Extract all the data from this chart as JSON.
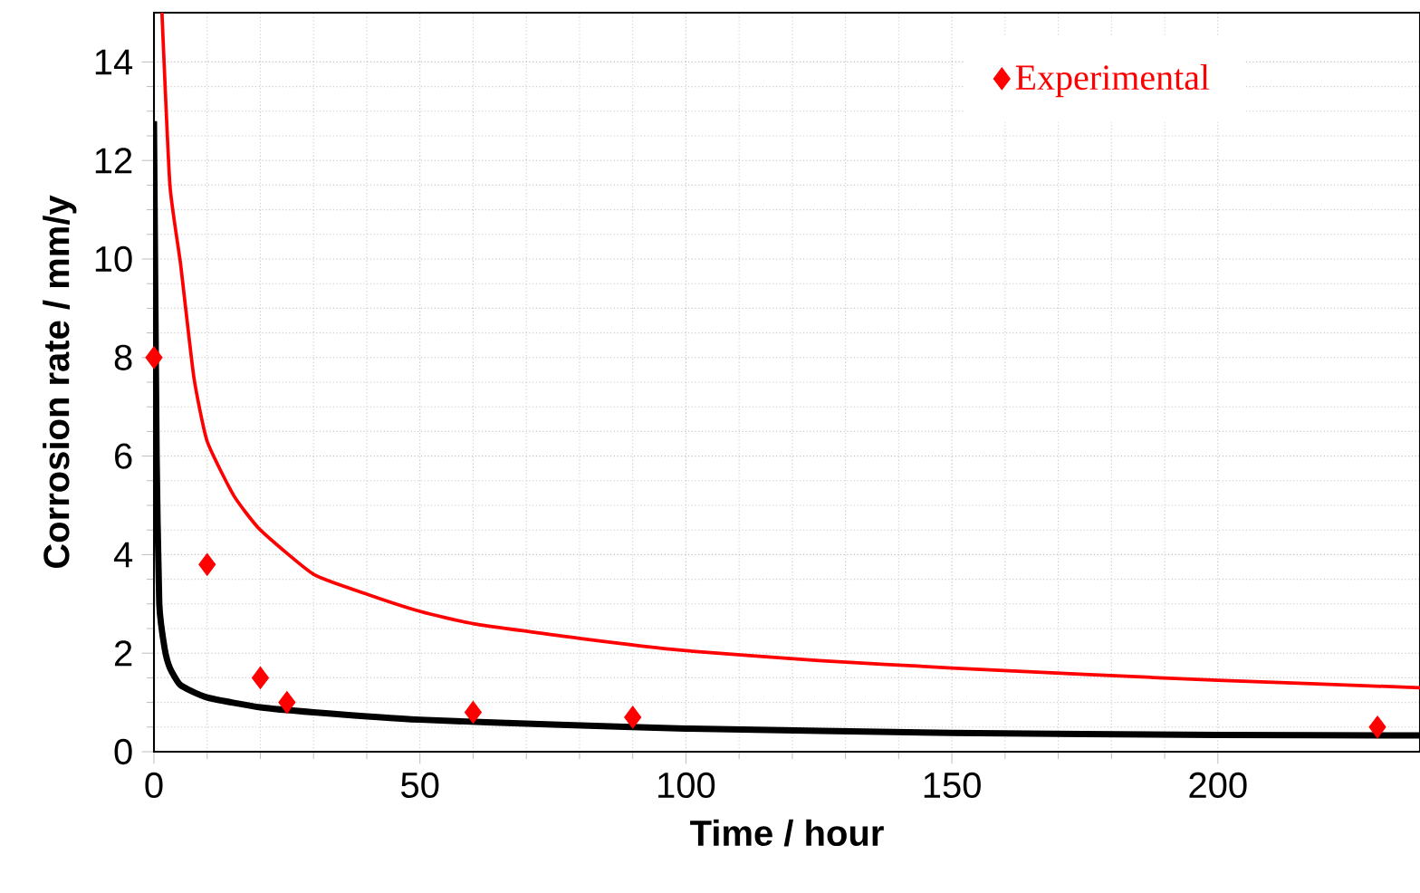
{
  "chart_data": {
    "type": "line",
    "xlabel": "Time / hour",
    "ylabel": "Corrosion rate / mm/y",
    "xlim": [
      0,
      238
    ],
    "ylim": [
      0,
      15
    ],
    "xticks": [
      0,
      50,
      100,
      150,
      200
    ],
    "yticks": [
      0,
      2,
      4,
      6,
      8,
      10,
      12,
      14
    ],
    "grid": true,
    "legend": "top right",
    "series": [
      {
        "name": "Experimental",
        "type": "scatter",
        "marker": "diamond",
        "color": "#ff0000",
        "x": [
          0,
          10,
          20,
          25,
          60,
          90,
          230
        ],
        "values": [
          8,
          3.8,
          1.5,
          1.0,
          0.8,
          0.7,
          0.5
        ]
      },
      {
        "color": "#ff0000",
        "x": [
          1.5,
          3,
          5,
          7.5,
          10,
          15,
          20,
          30,
          40,
          50,
          60,
          80,
          100,
          125,
          150,
          175,
          200,
          238
        ],
        "values": [
          15,
          11.5,
          9.9,
          7.6,
          6.3,
          5.2,
          4.5,
          3.6,
          3.2,
          2.85,
          2.6,
          2.3,
          2.05,
          1.85,
          1.7,
          1.57,
          1.45,
          1.3
        ]
      },
      {
        "color": "#000000",
        "x": [
          0,
          0.5,
          1,
          2,
          3,
          5,
          10,
          20,
          30,
          50,
          75,
          100,
          150,
          200,
          238
        ],
        "values": [
          12.8,
          6,
          3,
          2.1,
          1.7,
          1.35,
          1.1,
          0.9,
          0.8,
          0.65,
          0.55,
          0.47,
          0.38,
          0.34,
          0.33
        ]
      }
    ]
  }
}
